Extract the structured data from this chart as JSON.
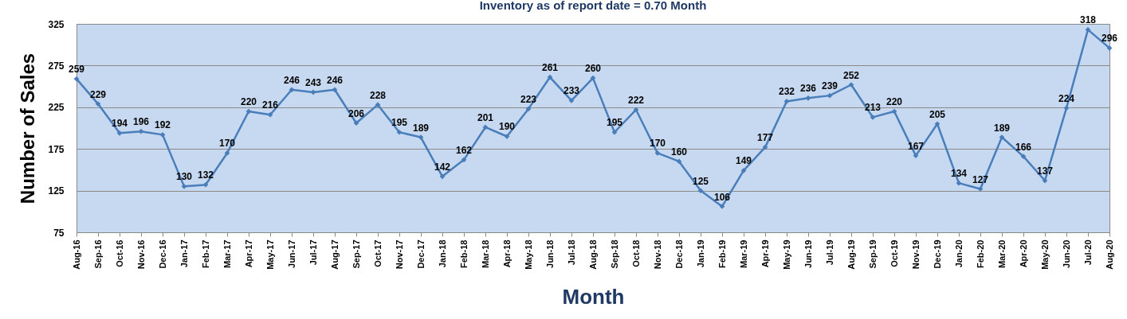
{
  "chart_data": {
    "type": "line",
    "title": "Inventory as of report date = 0.70 Month",
    "xlabel": "Month",
    "ylabel": "Number of Sales",
    "categories": [
      "Aug-16",
      "Sep-16",
      "Oct-16",
      "Nov-16",
      "Dec-16",
      "Jan-17",
      "Feb-17",
      "Mar-17",
      "Apr-17",
      "May-17",
      "Jun-17",
      "Jul-17",
      "Aug-17",
      "Sep-17",
      "Oct-17",
      "Nov-17",
      "Dec-17",
      "Jan-18",
      "Feb-18",
      "Mar-18",
      "Apr-18",
      "May-18",
      "Jun-18",
      "Jul-18",
      "Aug-18",
      "Sep-18",
      "Oct-18",
      "Nov-18",
      "Dec-18",
      "Jan-19",
      "Feb-19",
      "Mar-19",
      "Apr-19",
      "May-19",
      "Jun-19",
      "Jul-19",
      "Aug-19",
      "Sep-19",
      "Oct-19",
      "Nov-19",
      "Dec-19",
      "Jan-20",
      "Feb-20",
      "Mar-20",
      "Apr-20",
      "May-20",
      "Jun-20",
      "Jul-20",
      "Aug-20"
    ],
    "series": [
      {
        "color": "#4a7ebb",
        "values": [
          259,
          229,
          194,
          196,
          192,
          130,
          132,
          170,
          220,
          216,
          246,
          243,
          246,
          206,
          228,
          195,
          189,
          142,
          162,
          201,
          190,
          223,
          261,
          233,
          260,
          195,
          222,
          170,
          160,
          125,
          106,
          149,
          177,
          232,
          236,
          239,
          252,
          213,
          220,
          167,
          205,
          134,
          127,
          189,
          166,
          137,
          224,
          318,
          296
        ]
      }
    ],
    "ylim": [
      75,
      325
    ],
    "yticks": [
      75,
      125,
      175,
      225,
      275,
      325
    ],
    "grid": "y",
    "marker": "diamond",
    "line_style": "solid",
    "data_labels": true
  }
}
